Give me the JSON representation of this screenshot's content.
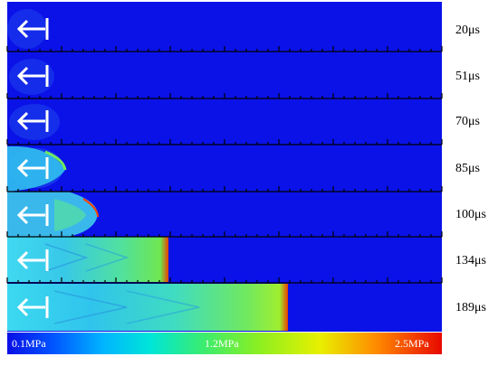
{
  "panels": [
    {
      "time_label": "20μs"
    },
    {
      "time_label": "51μs"
    },
    {
      "time_label": "70μs"
    },
    {
      "time_label": "85μs"
    },
    {
      "time_label": "100μs"
    },
    {
      "time_label": "134μs"
    },
    {
      "time_label": "189μs"
    }
  ],
  "colorbar": {
    "min_label": "0.1MPa",
    "mid_label": "1.2MPa",
    "max_label": "2.5MPa",
    "colors": [
      "#0a10e6",
      "#0078ff",
      "#00d8f0",
      "#22e8a8",
      "#5aec40",
      "#b4ee10",
      "#ffe000",
      "#ff7a00",
      "#f01000"
    ]
  },
  "colors": {
    "background_field": "#0a12e8",
    "arrow": "#ffffff",
    "separator": "#000000",
    "shock_front": "#e83a00"
  },
  "icons": {
    "flow_arrow": "left-arrow-with-bar-icon"
  }
}
